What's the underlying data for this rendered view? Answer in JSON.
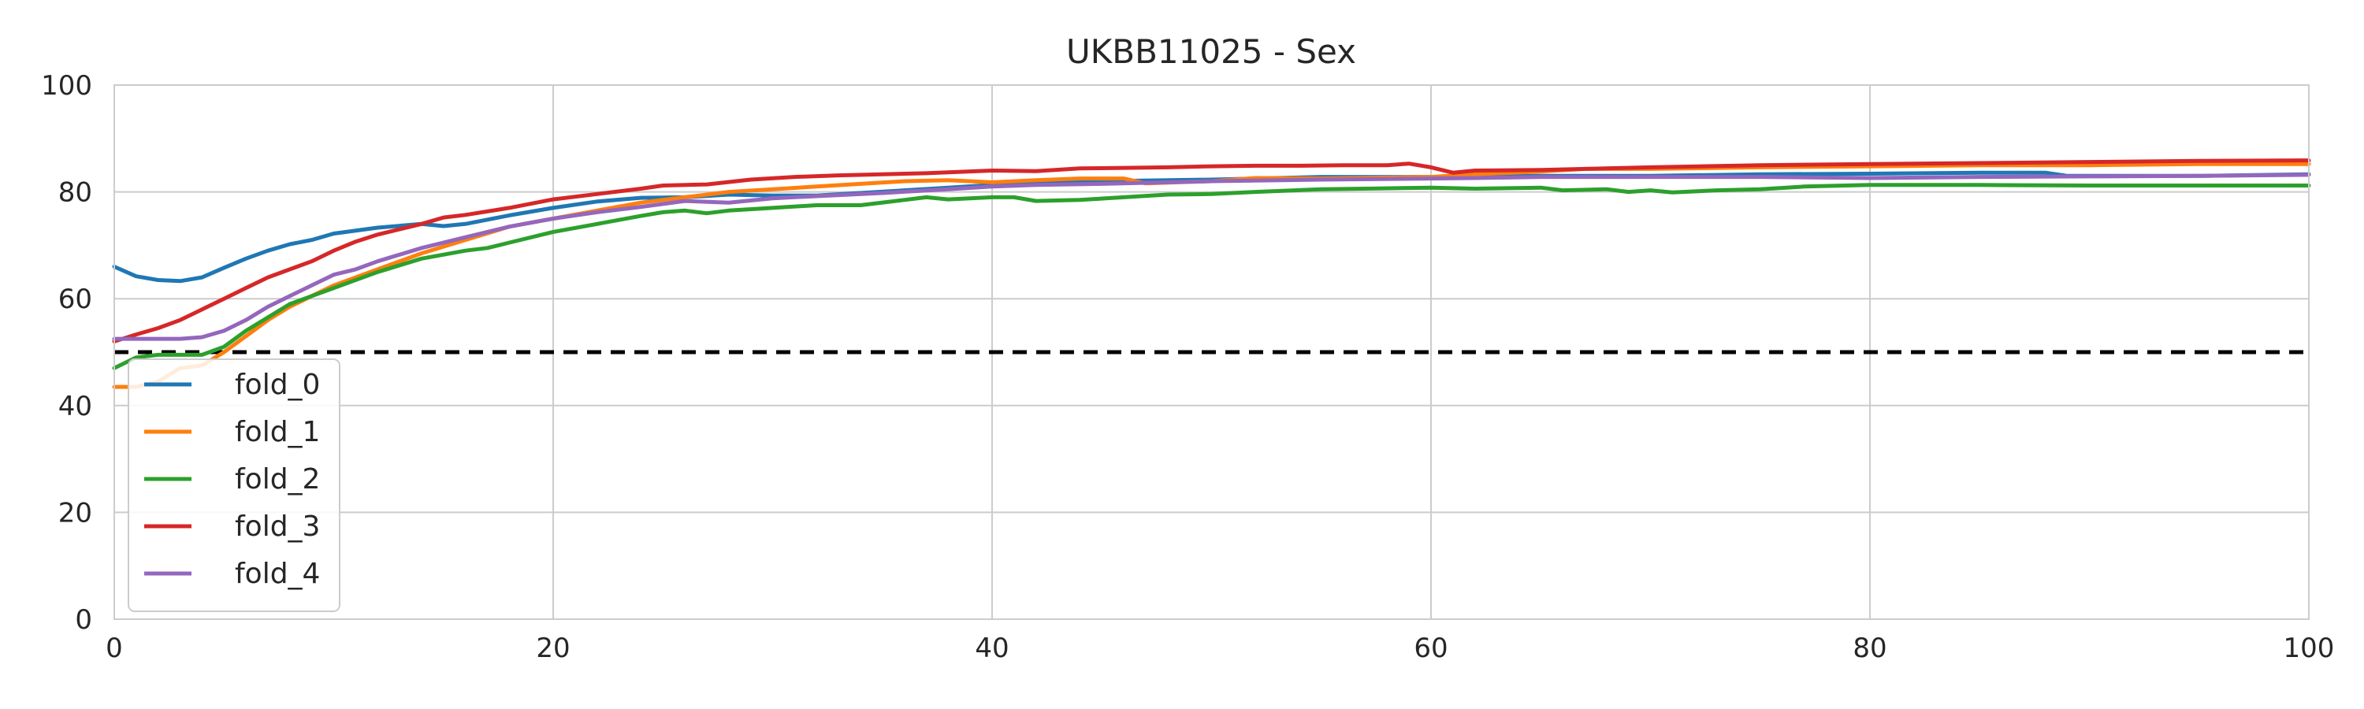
{
  "chart_data": {
    "type": "line",
    "title": "UKBB11025 - Sex",
    "xlabel": "",
    "ylabel": "",
    "xlim": [
      0,
      100
    ],
    "ylim": [
      0,
      100
    ],
    "xticks": [
      0,
      20,
      40,
      60,
      80,
      100
    ],
    "yticks": [
      0,
      20,
      40,
      60,
      80,
      100
    ],
    "grid": true,
    "legend_position": "lower-left",
    "reference_line": {
      "y": 50,
      "style": "dashed",
      "color": "#000000"
    },
    "series": [
      {
        "name": "fold_0",
        "color": "#1f77b4",
        "points": [
          [
            0,
            66
          ],
          [
            1,
            64.2
          ],
          [
            2,
            63.5
          ],
          [
            3,
            63.3
          ],
          [
            4,
            64
          ],
          [
            5,
            65.8
          ],
          [
            6,
            67.5
          ],
          [
            7,
            69
          ],
          [
            8,
            70.2
          ],
          [
            9,
            71
          ],
          [
            10,
            72.2
          ],
          [
            12,
            73.3
          ],
          [
            14,
            74
          ],
          [
            15,
            73.6
          ],
          [
            16,
            74
          ],
          [
            18,
            75.6
          ],
          [
            20,
            77
          ],
          [
            22,
            78.2
          ],
          [
            24,
            78.9
          ],
          [
            26,
            79
          ],
          [
            28,
            79.5
          ],
          [
            30,
            79.3
          ],
          [
            32,
            79.3
          ],
          [
            34,
            79.8
          ],
          [
            36,
            80.3
          ],
          [
            38,
            80.8
          ],
          [
            40,
            81.3
          ],
          [
            45,
            82
          ],
          [
            50,
            82.3
          ],
          [
            55,
            82.8
          ],
          [
            60,
            82.8
          ],
          [
            65,
            83
          ],
          [
            70,
            83
          ],
          [
            75,
            83.3
          ],
          [
            80,
            83.4
          ],
          [
            85,
            83.6
          ],
          [
            88,
            83.6
          ],
          [
            89,
            83
          ],
          [
            95,
            83
          ],
          [
            100,
            83.3
          ]
        ]
      },
      {
        "name": "fold_1",
        "color": "#ff7f0e",
        "points": [
          [
            0,
            43.5
          ],
          [
            1,
            43.5
          ],
          [
            2,
            44.5
          ],
          [
            3,
            47
          ],
          [
            4,
            47.5
          ],
          [
            5,
            50
          ],
          [
            6,
            53
          ],
          [
            7,
            56
          ],
          [
            8,
            58.5
          ],
          [
            9,
            60.5
          ],
          [
            10,
            62.5
          ],
          [
            12,
            65.5
          ],
          [
            14,
            68.5
          ],
          [
            16,
            71
          ],
          [
            18,
            73.5
          ],
          [
            20,
            75
          ],
          [
            22,
            76.5
          ],
          [
            24,
            78
          ],
          [
            26,
            79
          ],
          [
            28,
            80
          ],
          [
            30,
            80.5
          ],
          [
            32,
            81
          ],
          [
            34,
            81.5
          ],
          [
            36,
            82
          ],
          [
            38,
            82.2
          ],
          [
            40,
            81.8
          ],
          [
            42,
            82.2
          ],
          [
            44,
            82.5
          ],
          [
            46,
            82.5
          ],
          [
            47,
            81.6
          ],
          [
            50,
            82
          ],
          [
            52,
            82.6
          ],
          [
            55,
            82.5
          ],
          [
            60,
            82.8
          ],
          [
            62,
            83.3
          ],
          [
            65,
            83.8
          ],
          [
            67,
            84.3
          ],
          [
            70,
            84.3
          ],
          [
            75,
            84.6
          ],
          [
            80,
            84.8
          ],
          [
            85,
            85
          ],
          [
            90,
            85
          ],
          [
            95,
            85.2
          ],
          [
            100,
            85.2
          ]
        ]
      },
      {
        "name": "fold_2",
        "color": "#2ca02c",
        "points": [
          [
            0,
            47
          ],
          [
            1,
            49
          ],
          [
            2,
            49.5
          ],
          [
            3,
            49.5
          ],
          [
            4,
            49.5
          ],
          [
            5,
            51
          ],
          [
            6,
            54
          ],
          [
            7,
            56.5
          ],
          [
            8,
            59
          ],
          [
            9,
            60.5
          ],
          [
            10,
            62
          ],
          [
            12,
            65
          ],
          [
            14,
            67.5
          ],
          [
            16,
            69
          ],
          [
            17,
            69.5
          ],
          [
            18,
            70.5
          ],
          [
            20,
            72.5
          ],
          [
            22,
            74
          ],
          [
            24,
            75.5
          ],
          [
            25,
            76.2
          ],
          [
            26,
            76.5
          ],
          [
            27,
            76
          ],
          [
            28,
            76.5
          ],
          [
            30,
            77
          ],
          [
            32,
            77.5
          ],
          [
            34,
            77.5
          ],
          [
            36,
            78.5
          ],
          [
            37,
            79
          ],
          [
            38,
            78.6
          ],
          [
            40,
            79
          ],
          [
            41,
            79
          ],
          [
            42,
            78.3
          ],
          [
            44,
            78.5
          ],
          [
            46,
            79
          ],
          [
            48,
            79.5
          ],
          [
            50,
            79.6
          ],
          [
            52,
            80
          ],
          [
            55,
            80.5
          ],
          [
            57,
            80.6
          ],
          [
            60,
            80.8
          ],
          [
            62,
            80.6
          ],
          [
            65,
            80.8
          ],
          [
            66,
            80.3
          ],
          [
            68,
            80.5
          ],
          [
            69,
            80
          ],
          [
            70,
            80.3
          ],
          [
            71,
            79.9
          ],
          [
            73,
            80.3
          ],
          [
            75,
            80.5
          ],
          [
            77,
            81
          ],
          [
            80,
            81.3
          ],
          [
            85,
            81.3
          ],
          [
            90,
            81.2
          ],
          [
            100,
            81.2
          ]
        ]
      },
      {
        "name": "fold_3",
        "color": "#d62728",
        "points": [
          [
            0,
            52
          ],
          [
            1,
            53.3
          ],
          [
            2,
            54.5
          ],
          [
            3,
            56
          ],
          [
            4,
            58
          ],
          [
            5,
            60
          ],
          [
            6,
            62
          ],
          [
            7,
            64
          ],
          [
            8,
            65.5
          ],
          [
            9,
            67
          ],
          [
            10,
            69
          ],
          [
            11,
            70.7
          ],
          [
            12,
            72
          ],
          [
            14,
            74
          ],
          [
            15,
            75.2
          ],
          [
            16,
            75.7
          ],
          [
            18,
            77
          ],
          [
            20,
            78.6
          ],
          [
            22,
            79.6
          ],
          [
            24,
            80.6
          ],
          [
            25,
            81.2
          ],
          [
            27,
            81.4
          ],
          [
            29,
            82.3
          ],
          [
            31,
            82.8
          ],
          [
            33,
            83.1
          ],
          [
            35,
            83.3
          ],
          [
            37,
            83.5
          ],
          [
            40,
            84
          ],
          [
            42,
            83.9
          ],
          [
            44,
            84.4
          ],
          [
            46,
            84.5
          ],
          [
            48,
            84.6
          ],
          [
            50,
            84.8
          ],
          [
            52,
            84.9
          ],
          [
            54,
            84.9
          ],
          [
            56,
            85
          ],
          [
            58,
            85
          ],
          [
            59,
            85.3
          ],
          [
            60,
            84.6
          ],
          [
            61,
            83.6
          ],
          [
            62,
            84
          ],
          [
            65,
            84.1
          ],
          [
            70,
            84.6
          ],
          [
            75,
            85
          ],
          [
            80,
            85.2
          ],
          [
            85,
            85.4
          ],
          [
            90,
            85.6
          ],
          [
            95,
            85.8
          ],
          [
            100,
            85.9
          ]
        ]
      },
      {
        "name": "fold_4",
        "color": "#9467bd",
        "points": [
          [
            0,
            52.5
          ],
          [
            1,
            52.5
          ],
          [
            2,
            52.5
          ],
          [
            3,
            52.5
          ],
          [
            4,
            52.8
          ],
          [
            5,
            54
          ],
          [
            6,
            56
          ],
          [
            7,
            58.5
          ],
          [
            8,
            60.5
          ],
          [
            9,
            62.5
          ],
          [
            10,
            64.5
          ],
          [
            11,
            65.5
          ],
          [
            12,
            67
          ],
          [
            14,
            69.5
          ],
          [
            16,
            71.5
          ],
          [
            18,
            73.5
          ],
          [
            20,
            75
          ],
          [
            22,
            76.2
          ],
          [
            24,
            77.2
          ],
          [
            26,
            78.3
          ],
          [
            28,
            78
          ],
          [
            30,
            78.8
          ],
          [
            32,
            79.2
          ],
          [
            35,
            79.8
          ],
          [
            38,
            80.5
          ],
          [
            40,
            81
          ],
          [
            42,
            81.3
          ],
          [
            45,
            81.5
          ],
          [
            48,
            81.8
          ],
          [
            50,
            82
          ],
          [
            55,
            82.3
          ],
          [
            60,
            82.5
          ],
          [
            62,
            82.6
          ],
          [
            65,
            82.8
          ],
          [
            70,
            82.8
          ],
          [
            75,
            82.8
          ],
          [
            80,
            82.6
          ],
          [
            85,
            82.8
          ],
          [
            90,
            82.9
          ],
          [
            95,
            83
          ],
          [
            100,
            83.2
          ]
        ]
      }
    ]
  }
}
